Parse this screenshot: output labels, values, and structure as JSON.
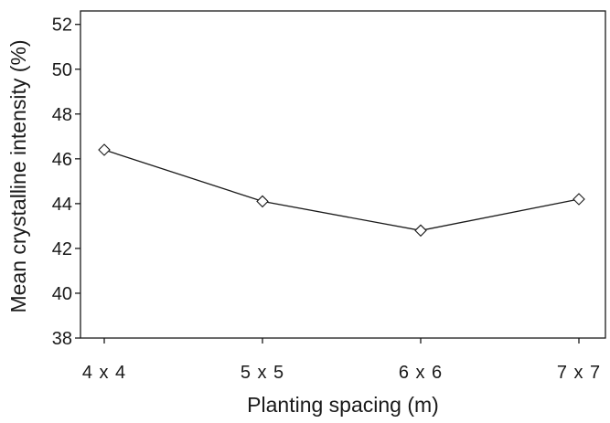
{
  "chart_data": {
    "type": "line",
    "title": "",
    "xlabel": "Planting spacing (m)",
    "ylabel": "Mean crystalline intensity (%)",
    "categories": [
      "4 x 4",
      "5 x 5",
      "6 x 6",
      "7 x 7"
    ],
    "series": [
      {
        "values": [
          46.4,
          44.1,
          42.8,
          44.2
        ],
        "marker": "diamond-open",
        "color": "#1a1a1a"
      }
    ],
    "ylim": [
      38,
      52.6
    ],
    "yticks": [
      38,
      40,
      42,
      44,
      46,
      48,
      50,
      52
    ],
    "grid": false,
    "legend": "none"
  }
}
